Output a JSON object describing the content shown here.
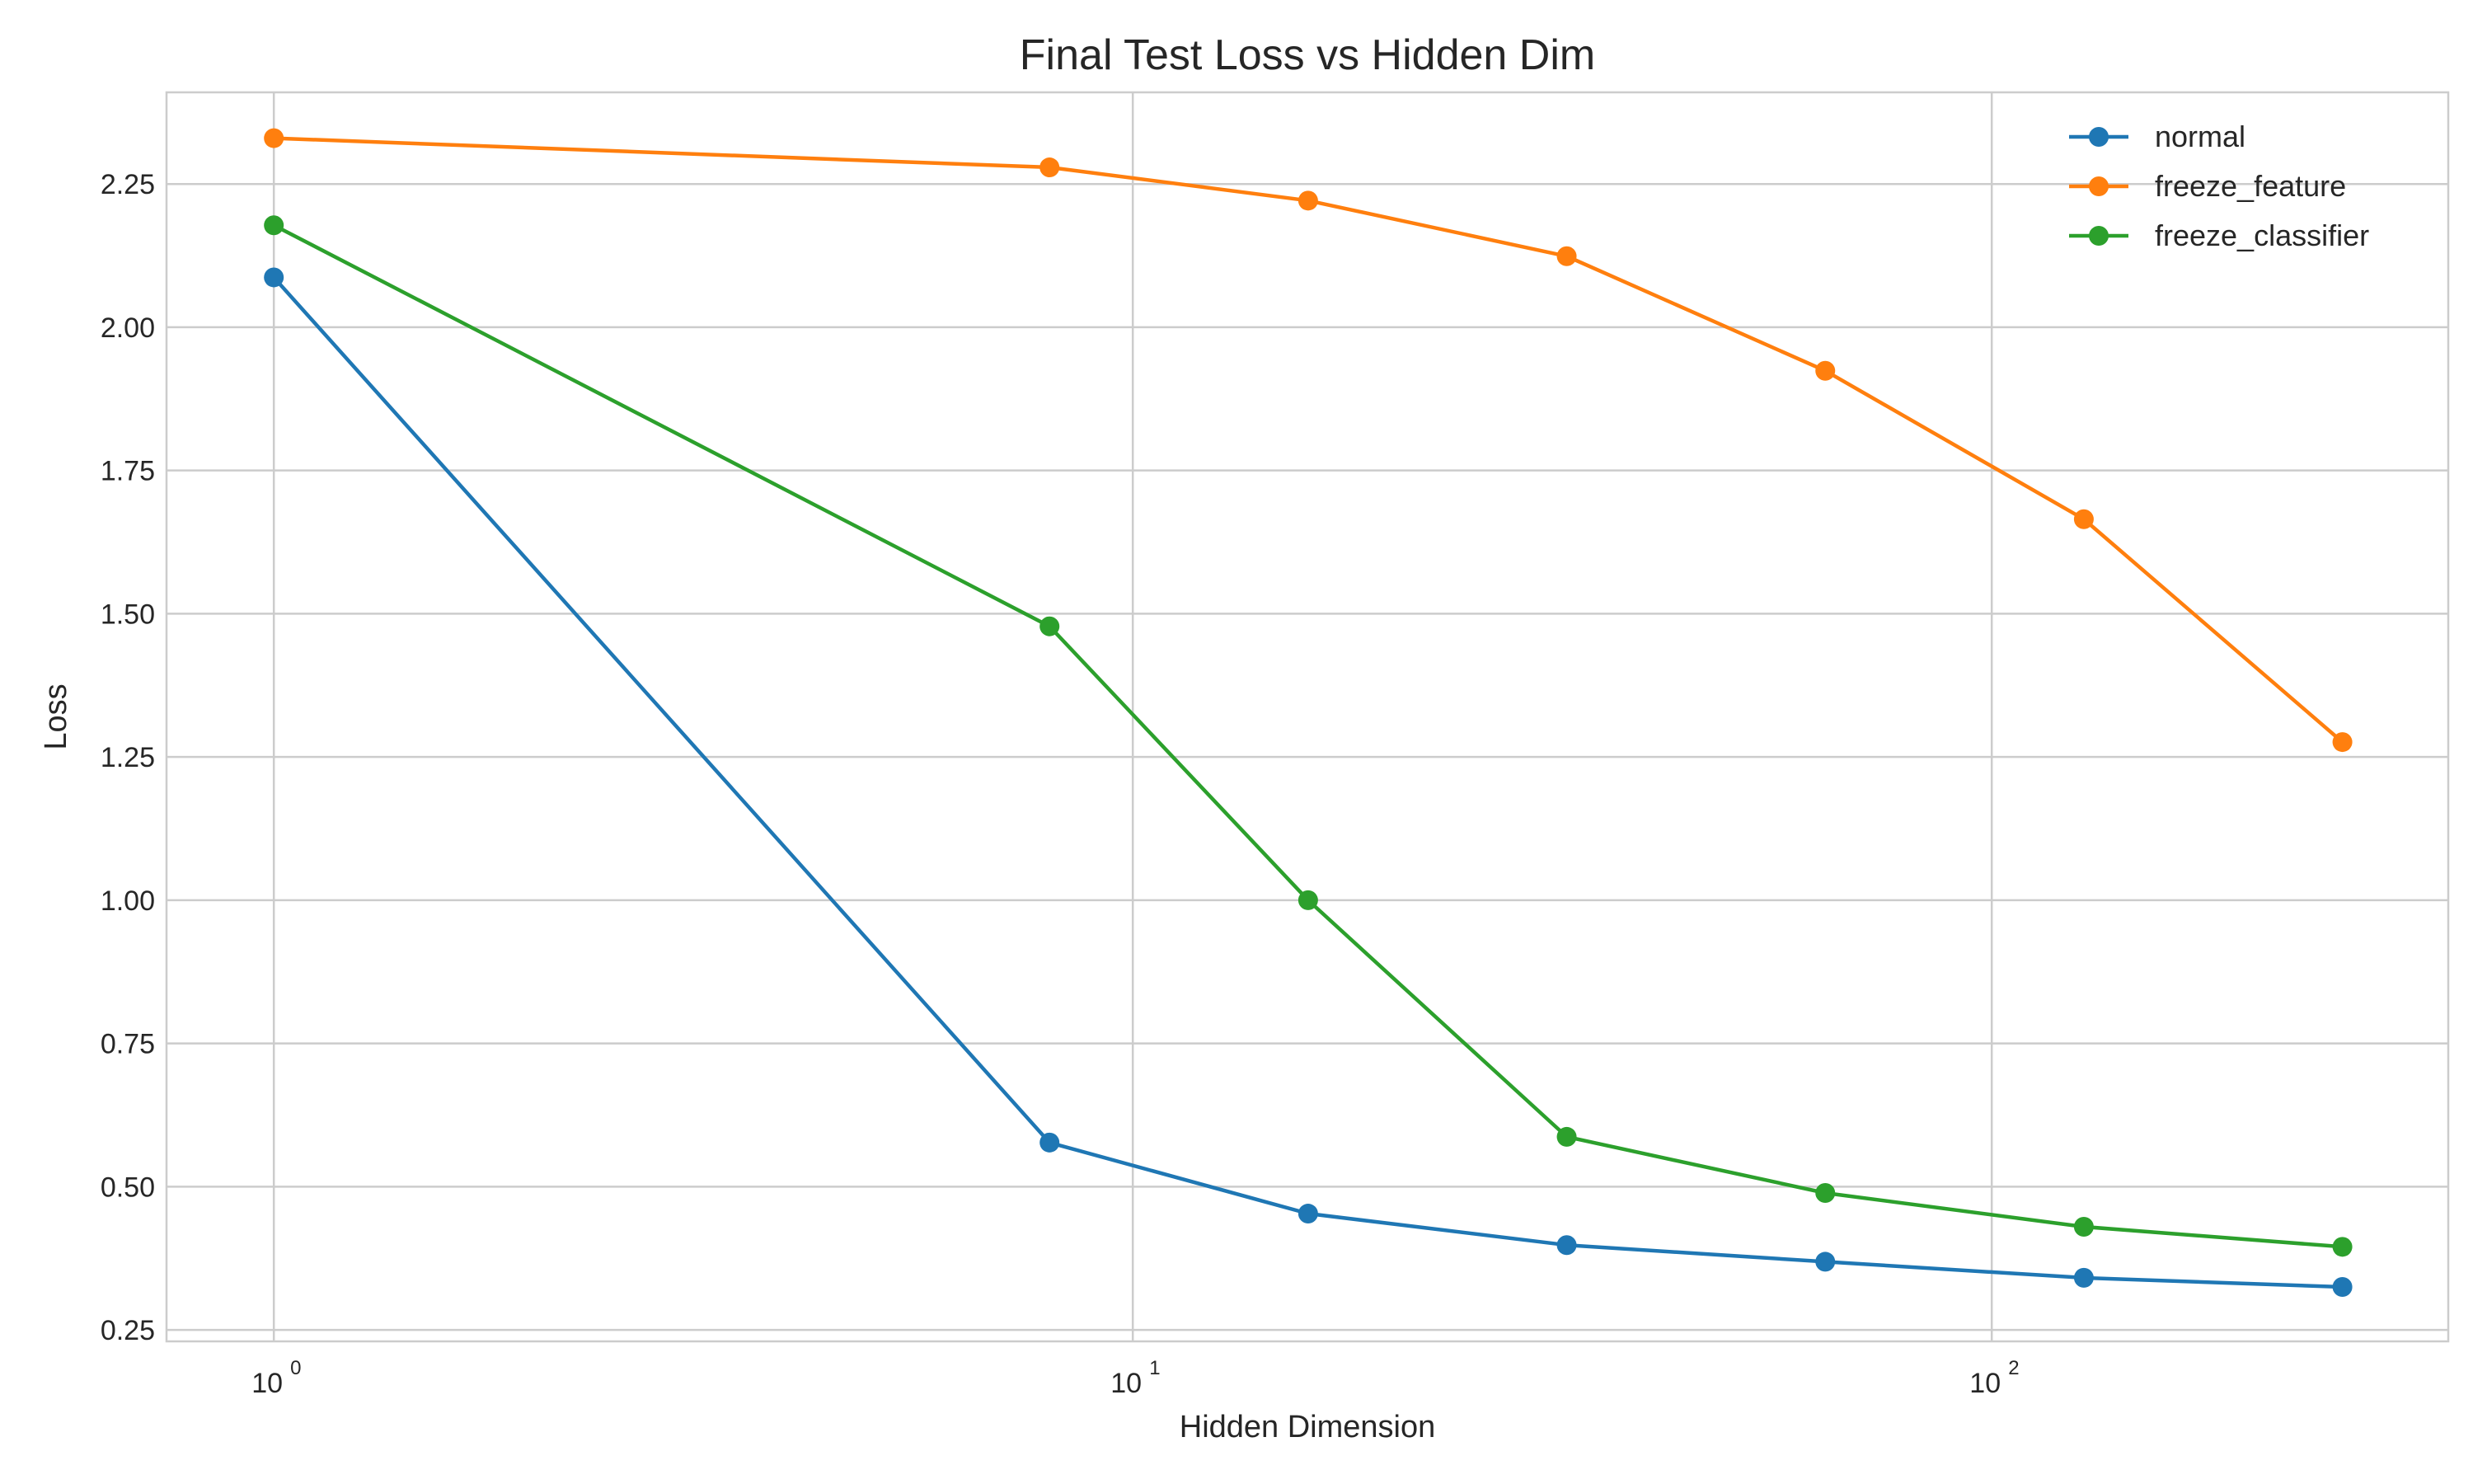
{
  "chart_data": {
    "type": "line",
    "title": "Final Test Loss vs Hidden Dim",
    "xlabel": "Hidden Dimension",
    "ylabel": "Loss",
    "x_scale": "log",
    "xlim": [
      0.75,
      340
    ],
    "ylim": [
      0.23,
      2.41
    ],
    "grid": true,
    "legend_position": "top-right",
    "x_ticks": [
      {
        "value": 1,
        "base": "10",
        "exp": "0"
      },
      {
        "value": 10,
        "base": "10",
        "exp": "1"
      },
      {
        "value": 100,
        "base": "10",
        "exp": "2"
      }
    ],
    "y_ticks": [
      {
        "value": 0.25,
        "label": "0.25"
      },
      {
        "value": 0.5,
        "label": "0.50"
      },
      {
        "value": 0.75,
        "label": "0.75"
      },
      {
        "value": 1.0,
        "label": "1.00"
      },
      {
        "value": 1.25,
        "label": "1.25"
      },
      {
        "value": 1.5,
        "label": "1.50"
      },
      {
        "value": 1.75,
        "label": "1.75"
      },
      {
        "value": 2.0,
        "label": "2.00"
      },
      {
        "value": 2.25,
        "label": "2.25"
      }
    ],
    "x": [
      1,
      8,
      16,
      32,
      64,
      128,
      256
    ],
    "series": [
      {
        "name": "normal",
        "color": "#1f77b4",
        "values": [
          2.087,
          0.577,
          0.453,
          0.398,
          0.369,
          0.341,
          0.325
        ]
      },
      {
        "name": "freeze_feature",
        "color": "#ff7f0e",
        "values": [
          2.33,
          2.279,
          2.221,
          2.124,
          1.924,
          1.665,
          1.276
        ]
      },
      {
        "name": "freeze_classifier",
        "color": "#2ca02c",
        "values": [
          2.178,
          1.478,
          1.0,
          0.587,
          0.489,
          0.43,
          0.395
        ]
      }
    ]
  }
}
